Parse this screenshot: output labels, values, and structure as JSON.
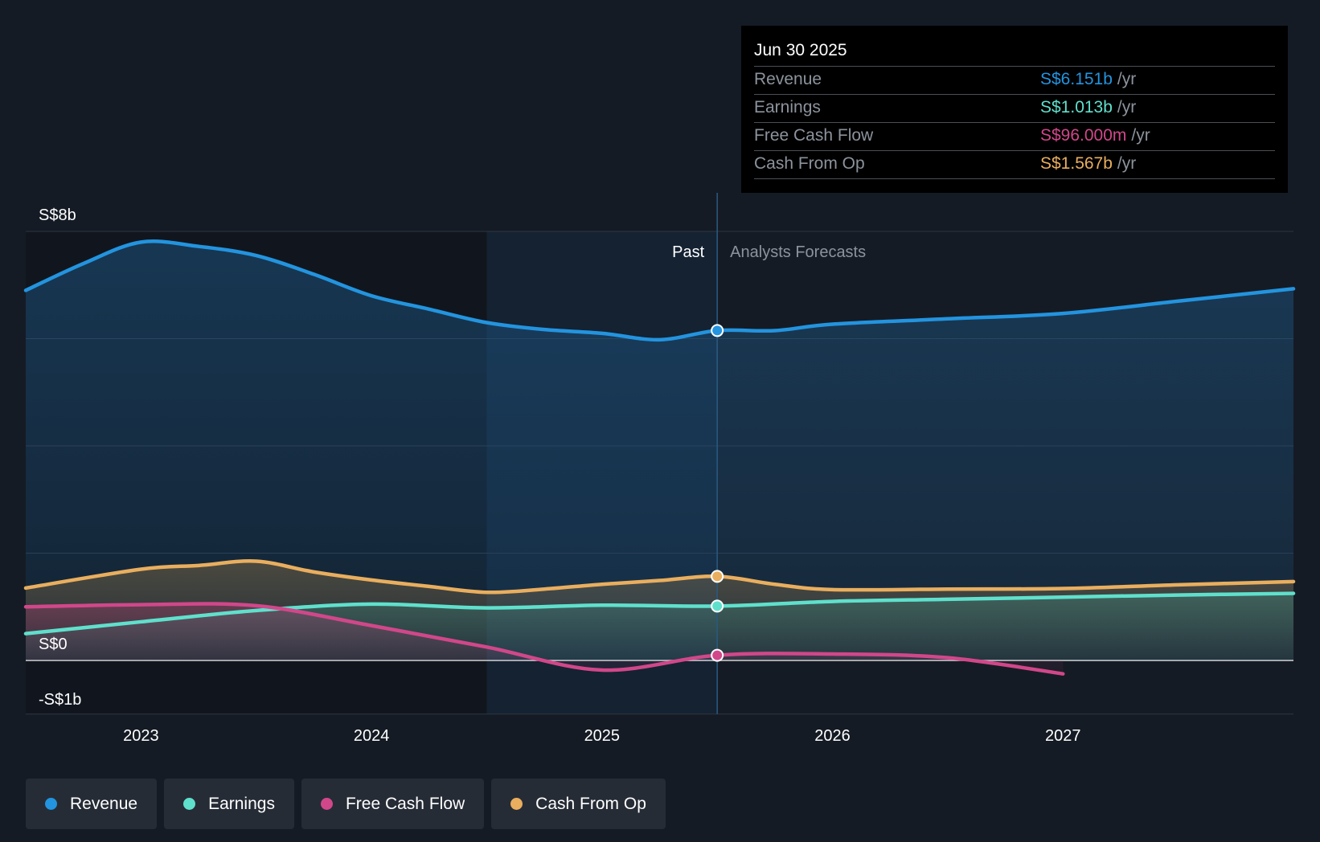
{
  "chart_data": {
    "type": "area",
    "currency_prefix": "S$",
    "y_axis": {
      "min": -1,
      "max": 8,
      "unit": "billions",
      "labels": [
        "S$8b",
        "S$0",
        "-S$1b"
      ],
      "label_values": [
        8,
        0,
        -1
      ],
      "gridlines": [
        8,
        6,
        4,
        2,
        0,
        -1
      ]
    },
    "x_axis": {
      "ticks": [
        "2023",
        "2024",
        "2025",
        "2026",
        "2027"
      ],
      "tick_values": [
        2023,
        2024,
        2025,
        2026,
        2027
      ],
      "range": [
        2022.5,
        2028.0
      ]
    },
    "regions": {
      "past_label": "Past",
      "forecast_label": "Analysts Forecasts",
      "divider_x": 2025.5,
      "highlight_start_x": 2024.5
    },
    "series": [
      {
        "name": "Revenue",
        "color": "#2394df",
        "values": [
          [
            2022.5,
            6.9
          ],
          [
            2022.75,
            7.4
          ],
          [
            2023.0,
            7.8
          ],
          [
            2023.25,
            7.72
          ],
          [
            2023.5,
            7.55
          ],
          [
            2023.75,
            7.2
          ],
          [
            2024.0,
            6.8
          ],
          [
            2024.25,
            6.55
          ],
          [
            2024.5,
            6.3
          ],
          [
            2024.75,
            6.17
          ],
          [
            2025.0,
            6.1
          ],
          [
            2025.25,
            5.98
          ],
          [
            2025.5,
            6.151
          ],
          [
            2025.75,
            6.15
          ],
          [
            2026.0,
            6.27
          ],
          [
            2026.5,
            6.37
          ],
          [
            2027.0,
            6.47
          ],
          [
            2027.5,
            6.7
          ],
          [
            2028.0,
            6.93
          ]
        ]
      },
      {
        "name": "Earnings",
        "color": "#5fe0cc",
        "values": [
          [
            2022.5,
            0.5
          ],
          [
            2023.0,
            0.72
          ],
          [
            2023.5,
            0.93
          ],
          [
            2024.0,
            1.05
          ],
          [
            2024.5,
            0.98
          ],
          [
            2025.0,
            1.03
          ],
          [
            2025.5,
            1.013
          ],
          [
            2026.0,
            1.1
          ],
          [
            2026.5,
            1.14
          ],
          [
            2027.0,
            1.18
          ],
          [
            2027.5,
            1.22
          ],
          [
            2028.0,
            1.25
          ]
        ]
      },
      {
        "name": "Free Cash Flow",
        "color": "#d1478a",
        "values": [
          [
            2022.5,
            1.0
          ],
          [
            2023.0,
            1.04
          ],
          [
            2023.5,
            1.02
          ],
          [
            2024.0,
            0.65
          ],
          [
            2024.5,
            0.25
          ],
          [
            2025.0,
            -0.18
          ],
          [
            2025.5,
            0.096
          ],
          [
            2026.0,
            0.12
          ],
          [
            2026.5,
            0.05
          ],
          [
            2027.0,
            -0.25
          ]
        ]
      },
      {
        "name": "Cash From Op",
        "color": "#e9ae5e",
        "values": [
          [
            2022.5,
            1.35
          ],
          [
            2023.0,
            1.7
          ],
          [
            2023.25,
            1.77
          ],
          [
            2023.5,
            1.85
          ],
          [
            2023.75,
            1.65
          ],
          [
            2024.0,
            1.5
          ],
          [
            2024.25,
            1.38
          ],
          [
            2024.5,
            1.27
          ],
          [
            2024.75,
            1.33
          ],
          [
            2025.0,
            1.42
          ],
          [
            2025.25,
            1.49
          ],
          [
            2025.5,
            1.567
          ],
          [
            2025.75,
            1.42
          ],
          [
            2026.0,
            1.32
          ],
          [
            2026.5,
            1.33
          ],
          [
            2027.0,
            1.34
          ],
          [
            2027.5,
            1.41
          ],
          [
            2028.0,
            1.47
          ]
        ]
      }
    ]
  },
  "tooltip": {
    "date": "Jun 30 2025",
    "rows": [
      {
        "name": "Revenue",
        "value": "S$6.151b",
        "unit": "/yr",
        "color": "#2394df"
      },
      {
        "name": "Earnings",
        "value": "S$1.013b",
        "unit": "/yr",
        "color": "#5fe0cc"
      },
      {
        "name": "Free Cash Flow",
        "value": "S$96.000m",
        "unit": "/yr",
        "color": "#d1478a"
      },
      {
        "name": "Cash From Op",
        "value": "S$1.567b",
        "unit": "/yr",
        "color": "#e9ae5e"
      }
    ]
  },
  "legend": [
    {
      "label": "Revenue",
      "color": "#2394df"
    },
    {
      "label": "Earnings",
      "color": "#5fe0cc"
    },
    {
      "label": "Free Cash Flow",
      "color": "#d1478a"
    },
    {
      "label": "Cash From Op",
      "color": "#e9ae5e"
    }
  ]
}
